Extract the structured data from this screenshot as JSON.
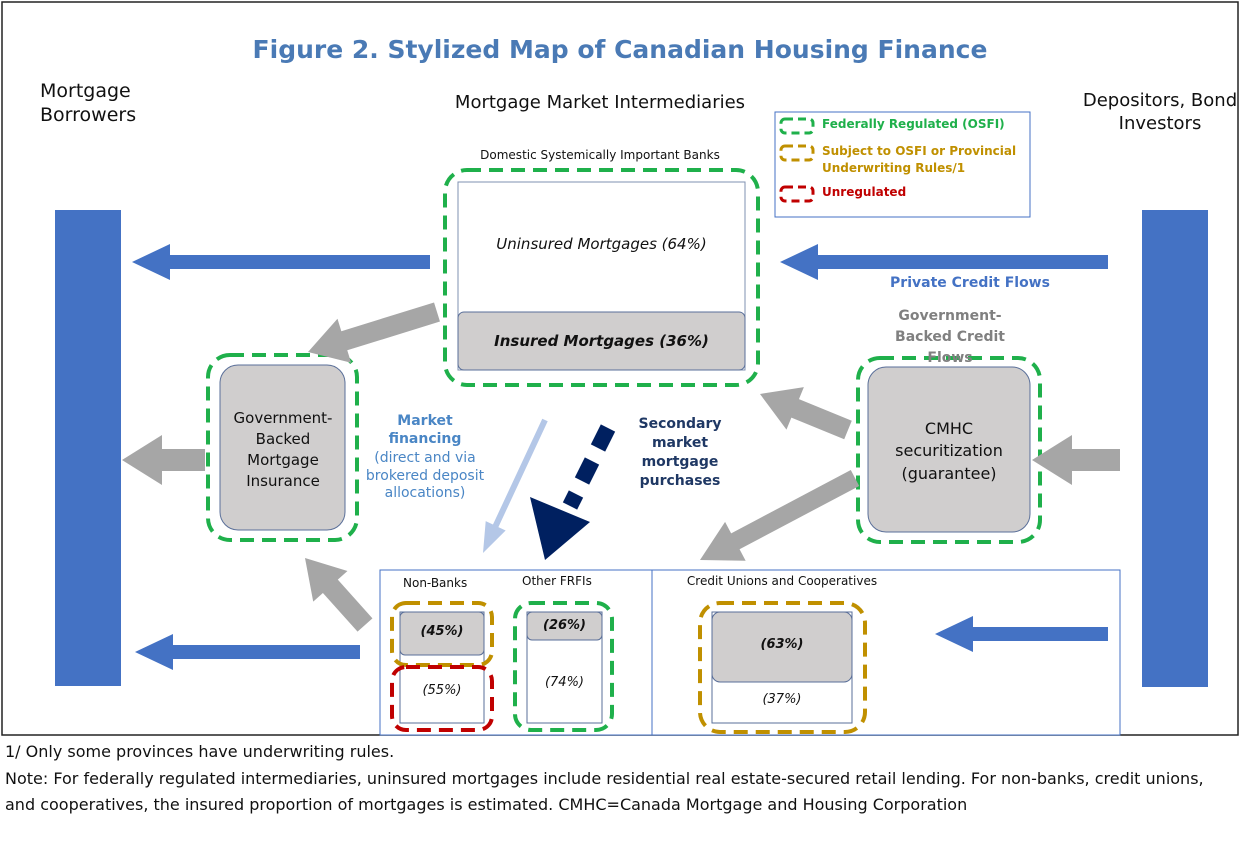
{
  "header": {
    "title": "Figure 2. Stylized Map of Canadian Housing Finance"
  },
  "columns": {
    "left": "Mortgage Borrowers",
    "center": "Mortgage Market Intermediaries",
    "right": "Depositors, Bond Investors"
  },
  "legend": {
    "items": [
      {
        "label": "Federally Regulated (OSFI)",
        "color": "#1fb04b"
      },
      {
        "label": "Subject to OSFI or Provincial Underwriting Rules/1",
        "color": "#c09000"
      },
      {
        "label": "Unregulated",
        "color": "#c00000"
      }
    ]
  },
  "dsib": {
    "label": "Domestic Systemically Important Banks",
    "uninsured": "Uninsured Mortgages (64%)",
    "insured": "Insured Mortgages (36%)"
  },
  "flows": {
    "private": "Private Credit Flows",
    "government": "Government-Backed Credit Flows",
    "market_title": "Market financing",
    "market_detail": "(direct and via brokered deposit allocations)",
    "secondary": "Secondary market mortgage purchases"
  },
  "nodes": {
    "insurance": "Government-Backed Mortgage Insurance",
    "cmhc": "CMHC securitization (guarantee)"
  },
  "lower": {
    "nonbanks": {
      "label": "Non-Banks",
      "insured": "(45%)",
      "uninsured": "(55%)"
    },
    "frfi": {
      "label": "Other FRFIs",
      "insured": "(26%)",
      "uninsured": "(74%)"
    },
    "credit_unions": {
      "label": "Credit Unions and Cooperatives",
      "insured": "(63%)",
      "uninsured": "(37%)"
    }
  },
  "footer": {
    "footnote": "1/ Only some provinces have underwriting rules.",
    "note": "Note: For federally regulated intermediaries, uninsured mortgages include residential real estate-secured retail lending. For non-banks, credit unions, and cooperatives, the insured proportion of mortgages is estimated. CMHC=Canada Mortgage and Housing Corporation"
  }
}
